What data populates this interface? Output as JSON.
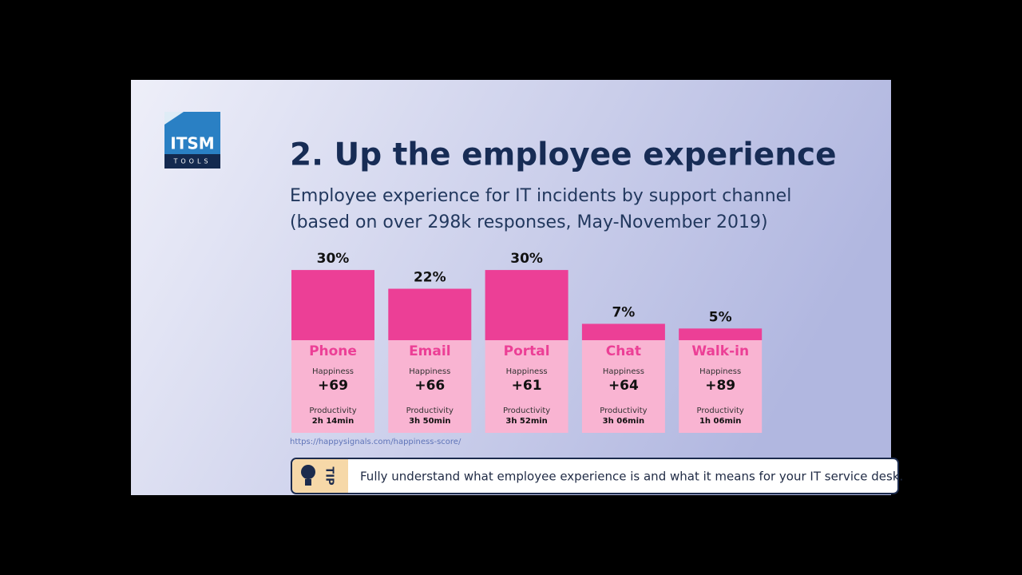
{
  "logo": {
    "name": "ITSM",
    "tagline": "TOOLS"
  },
  "chart_data": {
    "type": "bar",
    "title": "2. Up the employee experience",
    "subtitle": [
      "Employee experience for IT incidents by support channel",
      "(based on over 298k responses, May-November 2019)"
    ],
    "categories": [
      "Phone",
      "Email",
      "Portal",
      "Chat",
      "Walk-in"
    ],
    "values": [
      30,
      22,
      30,
      7,
      5
    ],
    "value_labels": [
      "30%",
      "22%",
      "30%",
      "7%",
      "5%"
    ],
    "color": "#ec3f96",
    "happiness": {
      "label": "Happiness",
      "scores": [
        "+69",
        "+66",
        "+61",
        "+64",
        "+89"
      ]
    },
    "productivity": {
      "label": "Productivity",
      "times": [
        "2h 14min",
        "3h 50min",
        "3h 52min",
        "3h 06min",
        "1h 06min"
      ]
    },
    "source": "https://happysignals.com/happiness-score/"
  },
  "tip": {
    "label": "TIP",
    "text": "Fully understand what employee experience is and what it means for your IT service desk."
  }
}
